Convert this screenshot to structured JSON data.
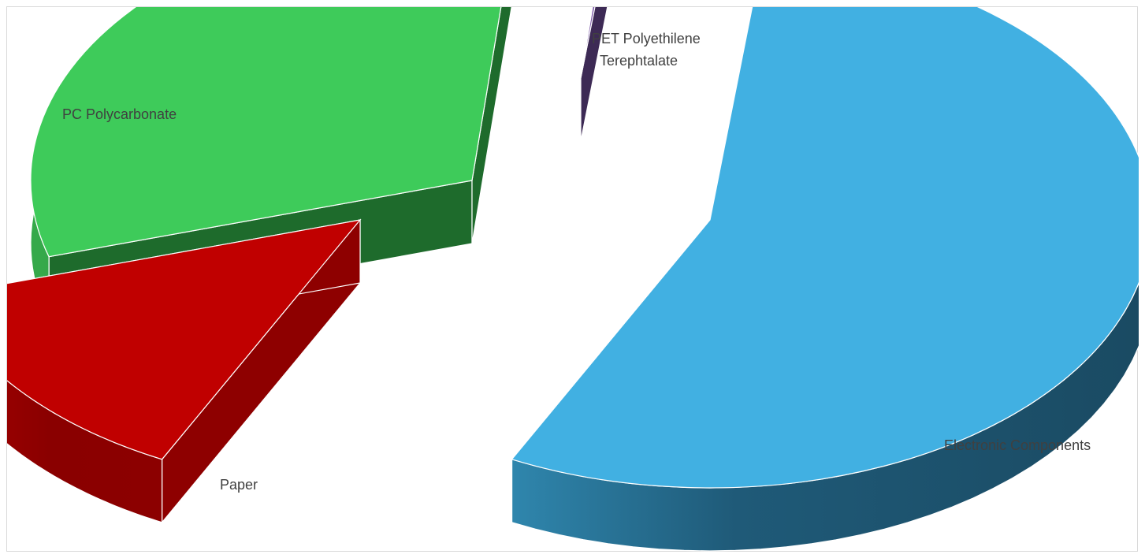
{
  "chart_data": {
    "type": "pie",
    "title": "",
    "legend": "none",
    "exploded": true,
    "categories": [
      "Electronic Components",
      "Paper",
      "PC Polycarbonate",
      "PET Polyethilene Terephtalate"
    ],
    "values": [
      55.5,
      13.0,
      31.2,
      0.3
    ],
    "units": "%",
    "labels": [
      "Electronic Components",
      "Paper",
      "PC Polycarbonate",
      "PET Polyethilene Terephtalate"
    ],
    "colors": [
      "#41b0e2",
      "#c00000",
      "#3ecb5a",
      "#7a55a6"
    ],
    "side_colors": [
      "#1b4a63",
      "#8e0000",
      "#1e6b2c",
      "#3d2a55"
    ]
  }
}
